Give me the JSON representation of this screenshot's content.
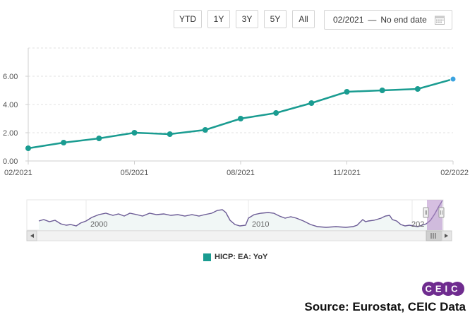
{
  "toolbar": {
    "ranges": [
      "YTD",
      "1Y",
      "3Y",
      "5Y",
      "All"
    ],
    "date_from": "02/2021",
    "date_to": "No end date",
    "calendar_icon": "calendar-icon"
  },
  "chart_data": {
    "type": "line",
    "title": "",
    "xlabel": "",
    "ylabel": "",
    "x": [
      "02/2021",
      "03/2021",
      "04/2021",
      "05/2021",
      "06/2021",
      "07/2021",
      "08/2021",
      "09/2021",
      "10/2021",
      "11/2021",
      "12/2021",
      "01/2022",
      "02/2022"
    ],
    "x_tick_labels": [
      "02/2021",
      "05/2021",
      "08/2021",
      "11/2021",
      "02/2022"
    ],
    "series": [
      {
        "name": "HICP: EA: YoY",
        "values": [
          0.9,
          1.3,
          1.6,
          2.0,
          1.9,
          2.2,
          3.0,
          3.4,
          4.1,
          4.9,
          5.0,
          5.1,
          5.8
        ]
      }
    ],
    "ylim": [
      0,
      8
    ],
    "y_ticks": [
      "0.00",
      "2.00",
      "4.00",
      "6.00"
    ],
    "grid": true,
    "color": "#1a9c91",
    "last_point_color": "#3ba3e0",
    "navigator": {
      "year_labels": [
        "2000",
        "2010",
        "202"
      ],
      "scroll_left_icon": "arrow-left-icon",
      "scroll_right_icon": "arrow-right-icon",
      "grip_icon": "grip-icon"
    }
  },
  "legend": {
    "label": "HICP: EA: YoY",
    "color": "#1a9c91"
  },
  "branding": {
    "logo_text": "CEIC"
  },
  "source": "Source: Eurostat, CEIC Data"
}
